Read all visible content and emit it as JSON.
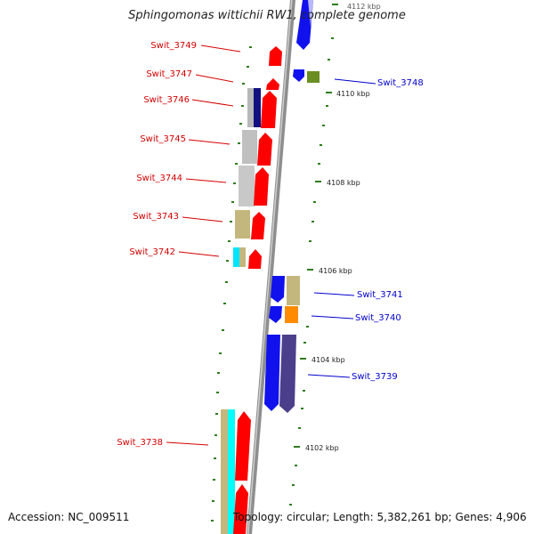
{
  "title": "Sphingomonas wittichii RW1, complete genome",
  "footer": {
    "accession": "Accession: NC_009511",
    "summary": "Topology: circular; Length: 5,382,261 bp; Genes: 4,906"
  },
  "colors": {
    "forward_label": "#d40000",
    "reverse_label": "#0000cc",
    "backbone": "#8e8e8e",
    "tick": "#2e7d1e"
  },
  "scale": {
    "unit": "kbp",
    "labels": [
      "4112 kbp",
      "4110 kbp",
      "4108 kbp",
      "4106 kbp",
      "4104 kbp",
      "4102 kbp"
    ]
  },
  "forward_genes": [
    "Swit_3749",
    "Swit_3747",
    "Swit_3746",
    "Swit_3745",
    "Swit_3744",
    "Swit_3743",
    "Swit_3742",
    "Swit_3738"
  ],
  "reverse_genes": [
    "Swit_3748",
    "Swit_3741",
    "Swit_3740",
    "Swit_3739"
  ]
}
